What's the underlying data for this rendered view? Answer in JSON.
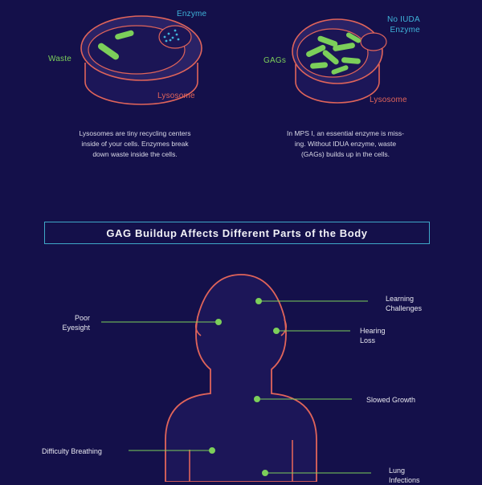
{
  "diagram1": {
    "enzyme_label": "Enzyme",
    "waste_label": "Waste",
    "lysosome_label": "Lysosome",
    "caption_line1": "Lysosomes are tiny recycling centers",
    "caption_line2": "inside of your cells. Enzymes break",
    "caption_line3": "down waste inside the cells."
  },
  "diagram2": {
    "no_iuda_label": "No IUDA",
    "enzyme_label": "Enzyme",
    "gags_label": "GAGs",
    "lysosome_label": "Lysosome",
    "caption_line1": "In MPS I, an essential enzyme is miss-",
    "caption_line2": "ing. Without IDUA enzyme, waste",
    "caption_line3": "(GAGs) builds up in the cells."
  },
  "banner": {
    "title": "GAG Buildup Affects Different Parts of the Body"
  },
  "body_labels": {
    "learning": [
      "Learning",
      "Challenges"
    ],
    "poor_eyesight": [
      "Poor",
      "Eyesight"
    ],
    "hearing": [
      "Hearing",
      "Loss"
    ],
    "slowed_growth": "Slowed Growth",
    "difficulty_breathing": "Difficulty Breathing",
    "lung": [
      "Lung",
      "Infections"
    ]
  },
  "colors": {
    "background": "#14104a",
    "outline": "#e0645a",
    "green": "#7ccf5a",
    "blue": "#3fb3d9"
  }
}
